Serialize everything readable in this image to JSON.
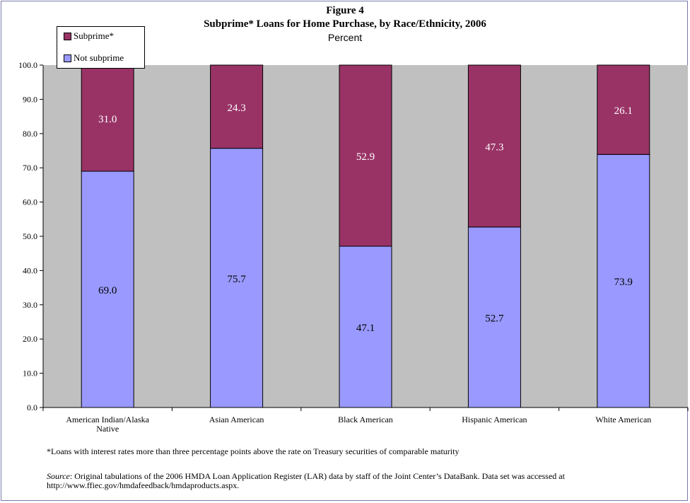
{
  "chart_data": {
    "type": "bar",
    "stacked": true,
    "title": "Figure 4",
    "subtitle": "Subprime* Loans for Home Purchase, by Race/Ethnicity, 2006",
    "unit_label": "Percent",
    "categories": [
      "American Indian/Alaska Native",
      "Asian American",
      "Black American",
      "Hispanic American",
      "White American"
    ],
    "category_lines": [
      [
        "American Indian/Alaska",
        "Native"
      ],
      [
        "Asian American"
      ],
      [
        "Black American"
      ],
      [
        "Hispanic American"
      ],
      [
        "White American"
      ]
    ],
    "series": [
      {
        "name": "Not subprime",
        "color": "#9999ff",
        "values": [
          69.0,
          75.7,
          47.1,
          52.7,
          73.9
        ],
        "value_labels": [
          "69.0",
          "75.7",
          "47.1",
          "52.7",
          "73.9"
        ]
      },
      {
        "name": "Subprime*",
        "color": "#993366",
        "values": [
          31.0,
          24.3,
          52.9,
          47.3,
          26.1
        ],
        "value_labels": [
          "31.0",
          "24.3",
          "52.9",
          "47.3",
          "26.1"
        ]
      }
    ],
    "ylim": [
      0,
      100
    ],
    "yticks": [
      "0.0",
      "10.0",
      "20.0",
      "30.0",
      "40.0",
      "50.0",
      "60.0",
      "70.0",
      "80.0",
      "90.0",
      "100.0"
    ],
    "grid": false,
    "legend_position": "top-left",
    "plot_background": "#c0c0c0",
    "footnote": "*Loans with interest rates more than three percentage points above the rate on Treasury securities of comparable maturity",
    "source_label": "Source",
    "source_text": ": Original tabulations of the 2006 HMDA Loan Application Register (LAR) data by staff of the Joint Center’s DataBank.  Data set was accessed at http://www.ffiec.gov/hmdafeedback/hmdaproducts.aspx."
  }
}
